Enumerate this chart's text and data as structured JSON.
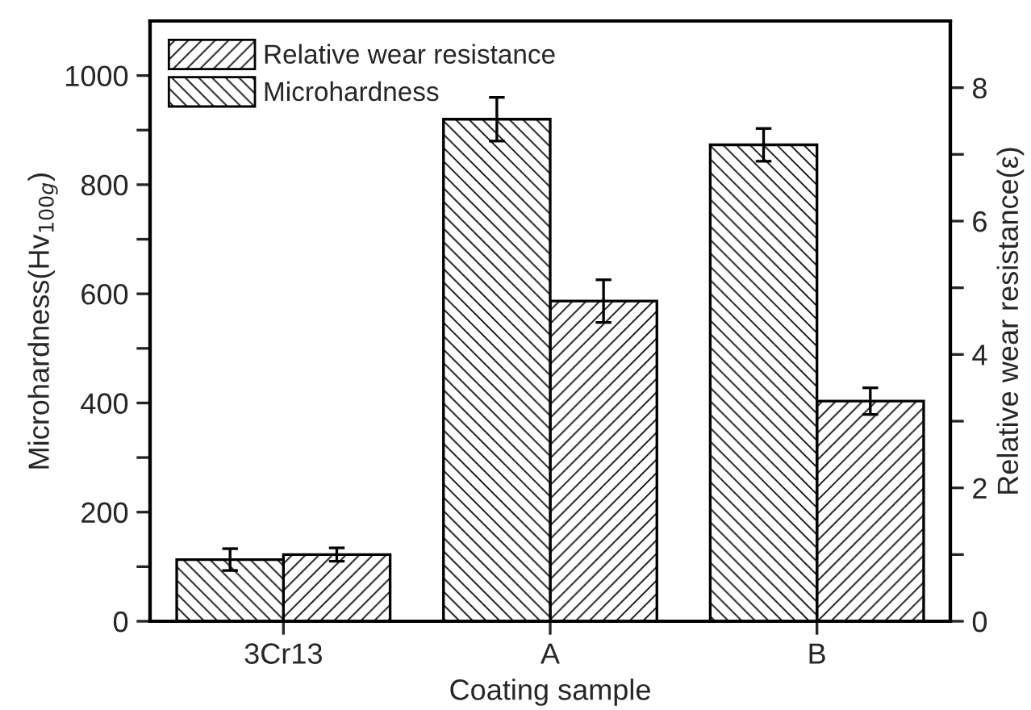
{
  "chart_data": {
    "type": "bar",
    "xlabel": "Coating sample",
    "ylabel": "Microhardness(Hv$_{100g}$)",
    "y2label": "Relative wear resistance(ε)",
    "categories": [
      "3Cr13",
      "A",
      "B"
    ],
    "series": [
      {
        "name": "Relative wear resistance",
        "color": "#000000",
        "axis": "y2",
        "values": [
          1.0,
          4.8,
          3.3
        ],
        "errors": [
          0.1,
          0.32,
          0.2
        ]
      },
      {
        "name": "Microhardness",
        "color": "#000000",
        "values": [
          113,
          920,
          873
        ],
        "errors": [
          20,
          40,
          30
        ]
      }
    ],
    "ylim": [
      0,
      1100
    ],
    "yticks": [
      0,
      {
        "value": 100,
        "label": null
      },
      200,
      {
        "value": 300,
        "label": null
      },
      400,
      {
        "value": 500,
        "label": null
      },
      600,
      {
        "value": 700,
        "label": null
      },
      800,
      {
        "value": 900,
        "label": null
      },
      1000
    ],
    "y2lim": [
      0,
      9
    ],
    "y2ticks": [
      0,
      {
        "value": 1,
        "label": null
      },
      2,
      {
        "value": 3,
        "label": null
      },
      4,
      {
        "value": 5,
        "label": null
      },
      6,
      {
        "value": 7,
        "label": null
      },
      8
    ],
    "legend": "top left",
    "grid": false
  }
}
